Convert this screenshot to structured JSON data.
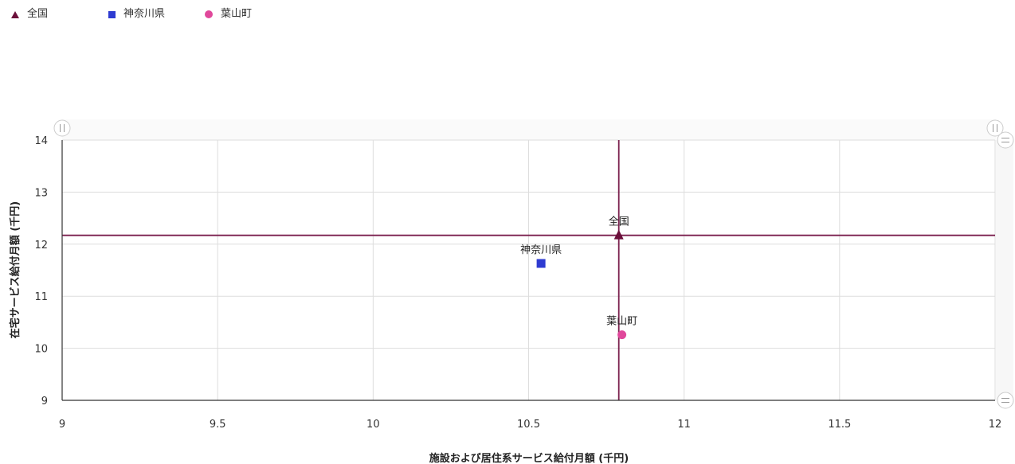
{
  "legend": {
    "items": [
      {
        "label": "全国",
        "marker": "triangle",
        "color": "#6b0f3a"
      },
      {
        "label": "神奈川県",
        "marker": "square",
        "color": "#2e3bd1"
      },
      {
        "label": "葉山町",
        "marker": "circle",
        "color": "#e0489b"
      }
    ]
  },
  "chart_data": {
    "type": "scatter",
    "xlabel": "施設および居住系サービス給付月額 (千円)",
    "ylabel": "在宅サービス給付月額 (千円)",
    "xlim": [
      9,
      12
    ],
    "ylim": [
      9,
      14
    ],
    "x_ticks": [
      "9",
      "9.5",
      "10",
      "10.5",
      "11",
      "11.5",
      "12"
    ],
    "y_ticks": [
      "9",
      "10",
      "11",
      "12",
      "13",
      "14"
    ],
    "grid": true,
    "legend_position": "top-left",
    "reference_lines": {
      "x": 10.79,
      "y": 12.17,
      "color": "#7a1f4d"
    },
    "series": [
      {
        "name": "全国",
        "marker": "triangle",
        "color": "#6b0f3a",
        "points": [
          {
            "x": 10.79,
            "y": 12.17,
            "label": "全国"
          }
        ]
      },
      {
        "name": "神奈川県",
        "marker": "square",
        "color": "#2e3bd1",
        "points": [
          {
            "x": 10.54,
            "y": 11.63,
            "label": "神奈川県"
          }
        ]
      },
      {
        "name": "葉山町",
        "marker": "circle",
        "color": "#e0489b",
        "points": [
          {
            "x": 10.8,
            "y": 10.26,
            "label": "葉山町"
          }
        ]
      }
    ]
  }
}
